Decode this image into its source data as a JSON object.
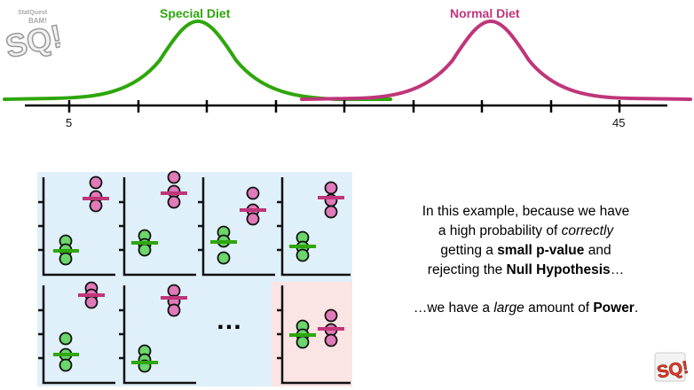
{
  "curves": {
    "special_label": "Special Diet",
    "normal_label": "Normal Diet",
    "special_color": "#2ea60c",
    "normal_color": "#c0357a"
  },
  "axis": {
    "tick_left": "5",
    "tick_right": "45"
  },
  "colors": {
    "panel_bg": "#dff0fb",
    "highlight_bg": "#fbe4e4",
    "green_dot": "#6bd66b",
    "pink_dot": "#e07ab8"
  },
  "text": {
    "line1": "In this example, because we have",
    "line2_pre": "a high probability of ",
    "line2_em": "correctly",
    "line3_pre": "getting a ",
    "line3_bold": "small p-value",
    "line3_post": " and",
    "line4_pre": "rejecting the ",
    "line4_bold": "Null Hypothesis",
    "line4_post": "…",
    "line5_pre": "…we have a ",
    "line5_em": "large",
    "line5_mid": " amount of ",
    "line5_bold": "Power",
    "line5_post": "."
  },
  "ellipsis": "…",
  "logo": {
    "line1": "StatQuest",
    "line2": "BAM!",
    "big": "SQ!"
  },
  "icons": {
    "top_left": "statquest-logo-icon",
    "bottom_right": "statquest-logo-icon"
  }
}
